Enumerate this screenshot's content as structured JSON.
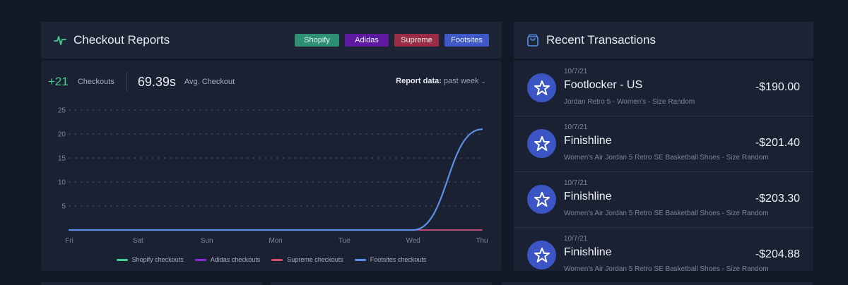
{
  "checkout": {
    "title": "Checkout Reports",
    "tags": [
      "Shopify",
      "Adidas",
      "Supreme",
      "Footsites"
    ],
    "count": "+21",
    "count_label": "Checkouts",
    "avg": "69.39s",
    "avg_label": "Avg. Checkout",
    "report_label": "Report data:",
    "report_value": "past week"
  },
  "colors": {
    "shopify": "#3fcf8e",
    "adidas": "#8a2be2",
    "supreme": "#d94a6a",
    "footsites": "#5b8fe6"
  },
  "chart_data": {
    "type": "line",
    "categories": [
      "Fri",
      "Sat",
      "Sun",
      "Mon",
      "Tue",
      "Wed",
      "Thu"
    ],
    "ylim": [
      0,
      25
    ],
    "yticks": [
      5,
      10,
      15,
      20,
      25
    ],
    "series": [
      {
        "name": "Shopify checkouts",
        "values": [
          0,
          0,
          0,
          0,
          0,
          0,
          0
        ]
      },
      {
        "name": "Adidas checkouts",
        "values": [
          0,
          0,
          0,
          0,
          0,
          0,
          0
        ]
      },
      {
        "name": "Supreme checkouts",
        "values": [
          0,
          0,
          0,
          0,
          0,
          0,
          0
        ]
      },
      {
        "name": "Footsites checkouts",
        "values": [
          0,
          0,
          0,
          0,
          0,
          0,
          21
        ]
      }
    ]
  },
  "transactions": {
    "title": "Recent Transactions",
    "items": [
      {
        "date": "10/7/21",
        "name": "Footlocker - US",
        "amount": "-$190.00",
        "desc": "Jordan Retro 5 - Women's - Size Random"
      },
      {
        "date": "10/7/21",
        "name": "Finishline",
        "amount": "-$201.40",
        "desc": "Women's Air Jordan 5 Retro SE Basketball Shoes - Size Random"
      },
      {
        "date": "10/7/21",
        "name": "Finishline",
        "amount": "-$203.30",
        "desc": "Women's Air Jordan 5 Retro SE Basketball Shoes - Size Random"
      },
      {
        "date": "10/7/21",
        "name": "Finishline",
        "amount": "-$204.88",
        "desc": "Women's Air Jordan 5 Retro SE Basketball Shoes - Size Random"
      }
    ]
  }
}
